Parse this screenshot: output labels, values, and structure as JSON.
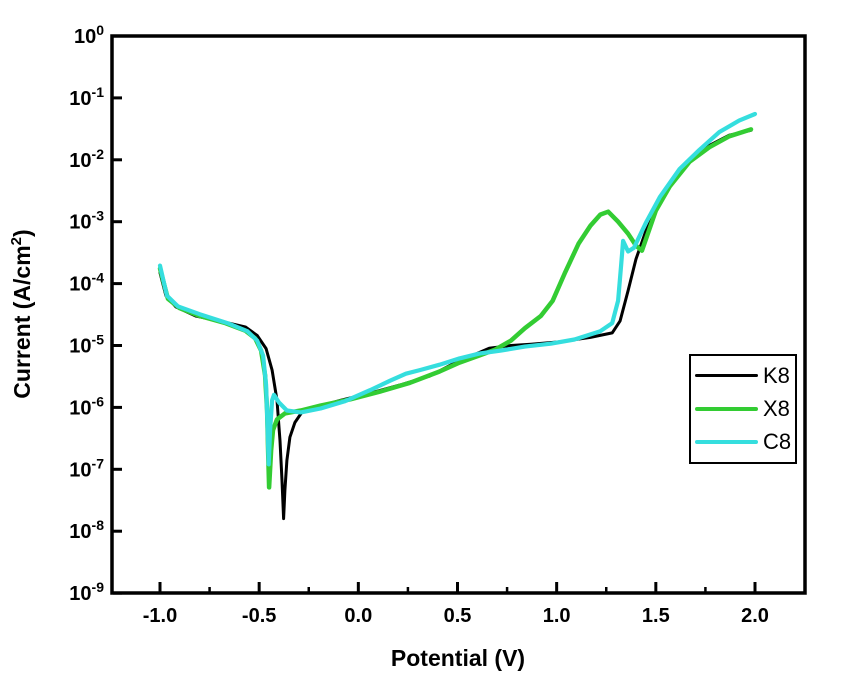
{
  "figure": {
    "background": "#ffffff"
  },
  "chart_data": {
    "type": "line",
    "title": "",
    "xlabel": "Potential (V)",
    "ylabel": "Current (A/cm²)",
    "grid": false,
    "legend_position": "middle-right",
    "x_axis": {
      "min": -1.24,
      "max": 2.25,
      "major_ticks": [
        -1.0,
        -0.5,
        0.0,
        0.5,
        1.0,
        1.5,
        2.0
      ],
      "major_labels": [
        "-1.0",
        "-0.5",
        "0.0",
        "0.5",
        "1.0",
        "1.5",
        "2.0"
      ],
      "minor_ticks": [
        -0.75,
        -0.25,
        0.25,
        0.75,
        1.25,
        1.75
      ]
    },
    "y_axis": {
      "scale": "log",
      "min": 1e-09,
      "max": 1,
      "tick_exponents": [
        0,
        -1,
        -2,
        -3,
        -4,
        -5,
        -6,
        -7,
        -8,
        -9
      ]
    },
    "series": [
      {
        "name": "K8",
        "color": "#000000",
        "width": 3,
        "points": [
          [
            -1.0,
            0.00015
          ],
          [
            -0.97,
            6.4e-05
          ],
          [
            -0.92,
            4.2e-05
          ],
          [
            -0.82,
            3e-05
          ],
          [
            -0.7,
            2.5e-05
          ],
          [
            -0.57,
            2e-05
          ],
          [
            -0.51,
            1.45e-05
          ],
          [
            -0.465,
            8.9e-06
          ],
          [
            -0.435,
            4e-06
          ],
          [
            -0.41,
            1.3e-06
          ],
          [
            -0.395,
            2.9e-07
          ],
          [
            -0.385,
            6.6e-08
          ],
          [
            -0.377,
            1.6e-08
          ],
          [
            -0.37,
            4.6e-08
          ],
          [
            -0.36,
            1.4e-07
          ],
          [
            -0.345,
            3.3e-07
          ],
          [
            -0.32,
            5.7e-07
          ],
          [
            -0.285,
            8.3e-07
          ],
          [
            -0.22,
            1e-06
          ],
          [
            -0.09,
            1.3e-06
          ],
          [
            0.06,
            1.7e-06
          ],
          [
            0.21,
            2.3e-06
          ],
          [
            0.36,
            3.2e-06
          ],
          [
            0.49,
            5.3e-06
          ],
          [
            0.56,
            6.6e-06
          ],
          [
            0.66,
            9e-06
          ],
          [
            0.77,
            1e-05
          ],
          [
            0.87,
            1.05e-05
          ],
          [
            1.02,
            1.15e-05
          ],
          [
            1.17,
            1.35e-05
          ],
          [
            1.28,
            1.6e-05
          ],
          [
            1.32,
            2.5e-05
          ],
          [
            1.36,
            7.7e-05
          ],
          [
            1.4,
            0.00025
          ],
          [
            1.45,
            0.00071
          ],
          [
            1.5,
            0.0015
          ],
          [
            1.57,
            0.0038
          ],
          [
            1.67,
            0.0096
          ],
          [
            1.77,
            0.017
          ],
          [
            1.87,
            0.025
          ],
          [
            1.98,
            0.03
          ]
        ]
      },
      {
        "name": "X8",
        "color": "#33cc33",
        "width": 4.5,
        "points": [
          [
            -1.0,
            0.000175
          ],
          [
            -0.96,
            5.7e-05
          ],
          [
            -0.9,
            4e-05
          ],
          [
            -0.8,
            3e-05
          ],
          [
            -0.67,
            2.3e-05
          ],
          [
            -0.57,
            1.74e-05
          ],
          [
            -0.52,
            1.3e-05
          ],
          [
            -0.49,
            8.3e-06
          ],
          [
            -0.47,
            3.3e-06
          ],
          [
            -0.46,
            8.9e-07
          ],
          [
            -0.455,
            2e-07
          ],
          [
            -0.45,
            5.1e-08
          ],
          [
            -0.44,
            2e-07
          ],
          [
            -0.43,
            4.3e-07
          ],
          [
            -0.41,
            6.4e-07
          ],
          [
            -0.37,
            8e-07
          ],
          [
            -0.29,
            8.9e-07
          ],
          [
            -0.19,
            1.07e-06
          ],
          [
            -0.04,
            1.35e-06
          ],
          [
            0.11,
            1.8e-06
          ],
          [
            0.26,
            2.5e-06
          ],
          [
            0.41,
            3.8e-06
          ],
          [
            0.51,
            5.3e-06
          ],
          [
            0.61,
            6.9e-06
          ],
          [
            0.69,
            8.6e-06
          ],
          [
            0.77,
            1.2e-05
          ],
          [
            0.84,
            1.9e-05
          ],
          [
            0.92,
            3e-05
          ],
          [
            0.98,
            5.3e-05
          ],
          [
            1.04,
            0.000145
          ],
          [
            1.11,
            0.00044
          ],
          [
            1.17,
            0.00086
          ],
          [
            1.22,
            0.0013
          ],
          [
            1.26,
            0.00145
          ],
          [
            1.31,
            0.001
          ],
          [
            1.36,
            0.00064
          ],
          [
            1.4,
            0.00041
          ],
          [
            1.43,
            0.00034
          ],
          [
            1.5,
            0.0015
          ],
          [
            1.57,
            0.0037
          ],
          [
            1.67,
            0.0093
          ],
          [
            1.77,
            0.016
          ],
          [
            1.87,
            0.024
          ],
          [
            1.98,
            0.031
          ]
        ]
      },
      {
        "name": "C8",
        "color": "#35dede",
        "width": 4.2,
        "points": [
          [
            -1.0,
            0.000195
          ],
          [
            -0.965,
            6.4e-05
          ],
          [
            -0.91,
            4.3e-05
          ],
          [
            -0.8,
            3.2e-05
          ],
          [
            -0.66,
            2.3e-05
          ],
          [
            -0.56,
            1.7e-05
          ],
          [
            -0.51,
            1.2e-05
          ],
          [
            -0.48,
            6.9e-06
          ],
          [
            -0.465,
            2.3e-06
          ],
          [
            -0.458,
            5.1e-07
          ],
          [
            -0.452,
            1.2e-07
          ],
          [
            -0.445,
            4.3e-07
          ],
          [
            -0.435,
            1.3e-06
          ],
          [
            -0.425,
            1.6e-06
          ],
          [
            -0.4,
            1.2e-06
          ],
          [
            -0.36,
            8.9e-07
          ],
          [
            -0.29,
            8.3e-07
          ],
          [
            -0.19,
            9.6e-07
          ],
          [
            -0.07,
            1.25e-06
          ],
          [
            0.06,
            1.9e-06
          ],
          [
            0.16,
            2.7e-06
          ],
          [
            0.24,
            3.5e-06
          ],
          [
            0.31,
            4e-06
          ],
          [
            0.41,
            4.9e-06
          ],
          [
            0.51,
            6.2e-06
          ],
          [
            0.61,
            7.4e-06
          ],
          [
            0.72,
            8.3e-06
          ],
          [
            0.84,
            9.6e-06
          ],
          [
            0.97,
            1.07e-05
          ],
          [
            1.09,
            1.25e-05
          ],
          [
            1.22,
            1.7e-05
          ],
          [
            1.28,
            2.3e-05
          ],
          [
            1.31,
            5.3e-05
          ],
          [
            1.325,
            0.000195
          ],
          [
            1.335,
            0.00049
          ],
          [
            1.36,
            0.00033
          ],
          [
            1.39,
            0.00038
          ],
          [
            1.45,
            0.00096
          ],
          [
            1.52,
            0.0025
          ],
          [
            1.62,
            0.0071
          ],
          [
            1.72,
            0.0145
          ],
          [
            1.82,
            0.028
          ],
          [
            1.92,
            0.043
          ],
          [
            2.0,
            0.055
          ]
        ]
      }
    ]
  }
}
